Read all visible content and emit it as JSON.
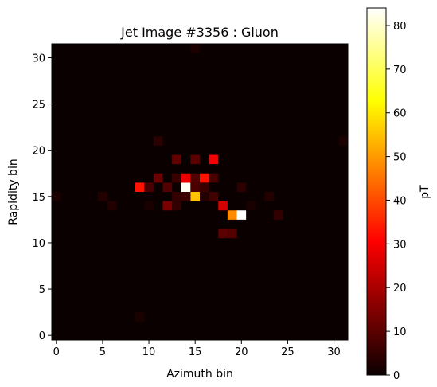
{
  "chart_data": {
    "type": "heatmap",
    "title": "Jet Image #3356 : Gluon",
    "xlabel": "Azimuth bin",
    "ylabel": "Rapidity bin",
    "colorbar_label": "pT",
    "colormap": "hot",
    "xlim": [
      -0.5,
      31.5
    ],
    "ylim": [
      -0.5,
      31.5
    ],
    "vmin": 0,
    "vmax": 84,
    "xticks": [
      0,
      5,
      10,
      15,
      20,
      25,
      30
    ],
    "yticks": [
      0,
      5,
      10,
      15,
      20,
      25,
      30
    ],
    "colorbar_ticks": [
      0,
      10,
      20,
      30,
      40,
      50,
      60,
      70,
      80
    ],
    "grid": false,
    "background_value": 0,
    "cells": [
      {
        "x": 20,
        "y": 13,
        "value": 84
      },
      {
        "x": 14,
        "y": 16,
        "value": 83
      },
      {
        "x": 15,
        "y": 15,
        "value": 55
      },
      {
        "x": 19,
        "y": 13,
        "value": 48
      },
      {
        "x": 9,
        "y": 16,
        "value": 33
      },
      {
        "x": 16,
        "y": 17,
        "value": 33
      },
      {
        "x": 17,
        "y": 19,
        "value": 30
      },
      {
        "x": 14,
        "y": 17,
        "value": 28
      },
      {
        "x": 18,
        "y": 14,
        "value": 25
      },
      {
        "x": 12,
        "y": 14,
        "value": 14
      },
      {
        "x": 11,
        "y": 17,
        "value": 12
      },
      {
        "x": 13,
        "y": 19,
        "value": 11
      },
      {
        "x": 15,
        "y": 19,
        "value": 10
      },
      {
        "x": 18,
        "y": 11,
        "value": 10
      },
      {
        "x": 19,
        "y": 11,
        "value": 9
      },
      {
        "x": 12,
        "y": 16,
        "value": 9
      },
      {
        "x": 15,
        "y": 17,
        "value": 9
      },
      {
        "x": 17,
        "y": 17,
        "value": 8
      },
      {
        "x": 10,
        "y": 16,
        "value": 8
      },
      {
        "x": 15,
        "y": 16,
        "value": 8
      },
      {
        "x": 17,
        "y": 15,
        "value": 7
      },
      {
        "x": 16,
        "y": 16,
        "value": 6
      },
      {
        "x": 13,
        "y": 17,
        "value": 6
      },
      {
        "x": 14,
        "y": 15,
        "value": 6
      },
      {
        "x": 13,
        "y": 15,
        "value": 5
      },
      {
        "x": 13,
        "y": 14,
        "value": 5
      },
      {
        "x": 24,
        "y": 13,
        "value": 5
      },
      {
        "x": 11,
        "y": 21,
        "value": 4
      },
      {
        "x": 20,
        "y": 16,
        "value": 4
      },
      {
        "x": 23,
        "y": 15,
        "value": 3
      },
      {
        "x": 5,
        "y": 15,
        "value": 3
      },
      {
        "x": 6,
        "y": 14,
        "value": 3
      },
      {
        "x": 16,
        "y": 15,
        "value": 3
      },
      {
        "x": 0,
        "y": 15,
        "value": 2
      },
      {
        "x": 9,
        "y": 2,
        "value": 2
      },
      {
        "x": 31,
        "y": 21,
        "value": 2
      },
      {
        "x": 15,
        "y": 31,
        "value": 2
      },
      {
        "x": 10,
        "y": 14,
        "value": 2
      },
      {
        "x": 21,
        "y": 14,
        "value": 2
      }
    ]
  }
}
